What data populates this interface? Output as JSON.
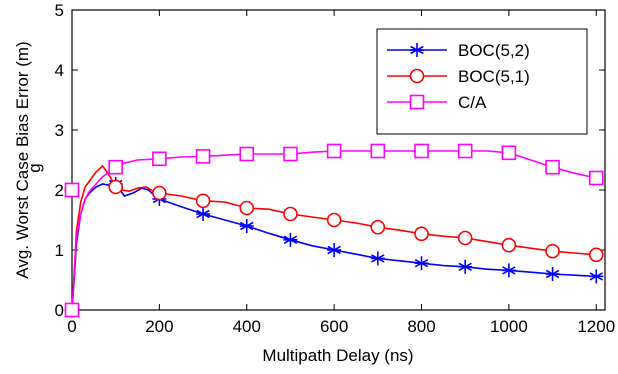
{
  "chart_data": {
    "type": "line",
    "title": "",
    "xlabel": "Multipath Delay (ns)",
    "ylabel": "Avg. Worst Case  Bias Error (m)",
    "ylabel_overlap_glyph": "g",
    "xlim": [
      0,
      1220
    ],
    "ylim": [
      0,
      5
    ],
    "xticks": [
      0,
      200,
      400,
      600,
      800,
      1000,
      1200
    ],
    "yticks": [
      0,
      1,
      2,
      3,
      4,
      5
    ],
    "grid": false,
    "legend_position": "top-right",
    "series": [
      {
        "name": "BOC(5,2)",
        "color": "#0000ff",
        "marker": "asterisk",
        "x": [
          0,
          5,
          10,
          20,
          30,
          40,
          55,
          70,
          85,
          100,
          120,
          140,
          160,
          175,
          190,
          200,
          250,
          300,
          350,
          400,
          450,
          500,
          550,
          600,
          650,
          700,
          750,
          800,
          850,
          900,
          950,
          1000,
          1050,
          1100,
          1150,
          1200
        ],
        "y": [
          0,
          0.5,
          1.1,
          1.6,
          1.85,
          1.95,
          2.05,
          2.1,
          2.08,
          2.1,
          1.9,
          1.95,
          2.03,
          2.0,
          1.9,
          1.85,
          1.72,
          1.6,
          1.5,
          1.4,
          1.28,
          1.17,
          1.07,
          1.0,
          0.93,
          0.86,
          0.82,
          0.78,
          0.74,
          0.72,
          0.68,
          0.66,
          0.63,
          0.6,
          0.58,
          0.56
        ]
      },
      {
        "name": "BOC(5,1)",
        "color": "#ff0000",
        "marker": "circle",
        "x": [
          0,
          5,
          10,
          20,
          30,
          40,
          55,
          70,
          85,
          100,
          115,
          130,
          150,
          170,
          190,
          200,
          250,
          300,
          350,
          400,
          450,
          500,
          550,
          600,
          650,
          700,
          750,
          800,
          850,
          900,
          950,
          1000,
          1050,
          1100,
          1150,
          1200
        ],
        "y": [
          0,
          0.6,
          1.3,
          1.8,
          2.05,
          2.15,
          2.3,
          2.4,
          2.25,
          2.05,
          2.0,
          1.98,
          2.03,
          2.05,
          1.96,
          1.95,
          1.9,
          1.82,
          1.8,
          1.7,
          1.68,
          1.6,
          1.55,
          1.5,
          1.45,
          1.38,
          1.33,
          1.27,
          1.23,
          1.2,
          1.14,
          1.08,
          1.03,
          0.98,
          0.95,
          0.92
        ]
      },
      {
        "name": "C/A",
        "color": "#ff00ff",
        "marker": "square",
        "x": [
          0,
          5,
          10,
          20,
          30,
          40,
          55,
          70,
          85,
          100,
          120,
          150,
          200,
          250,
          300,
          350,
          400,
          450,
          500,
          550,
          600,
          650,
          700,
          750,
          800,
          850,
          900,
          950,
          1000,
          1050,
          1100,
          1150,
          1200
        ],
        "y": [
          0,
          0.6,
          1.2,
          1.6,
          1.85,
          1.98,
          2.1,
          2.22,
          2.3,
          2.38,
          2.45,
          2.5,
          2.52,
          2.55,
          2.56,
          2.58,
          2.6,
          2.6,
          2.6,
          2.63,
          2.65,
          2.65,
          2.65,
          2.65,
          2.65,
          2.65,
          2.65,
          2.65,
          2.62,
          2.5,
          2.38,
          2.28,
          2.2
        ]
      }
    ],
    "markers_x": {
      "BOC(5,2)": [
        0,
        100,
        200,
        300,
        400,
        500,
        600,
        700,
        800,
        900,
        1000,
        1100,
        1200
      ],
      "BOC(5,1)": [
        0,
        100,
        200,
        300,
        400,
        500,
        600,
        700,
        800,
        900,
        1000,
        1100,
        1200
      ],
      "C/A": [
        0,
        100,
        200,
        300,
        400,
        500,
        600,
        700,
        800,
        900,
        1000,
        1100,
        1200
      ]
    },
    "extra_markers": [
      {
        "series": "BOC(5,2)",
        "x": 0,
        "y": 2.0
      },
      {
        "series": "BOC(5,1)",
        "x": 0,
        "y": 2.0
      },
      {
        "series": "C/A",
        "x": 0,
        "y": 2.0
      }
    ]
  }
}
